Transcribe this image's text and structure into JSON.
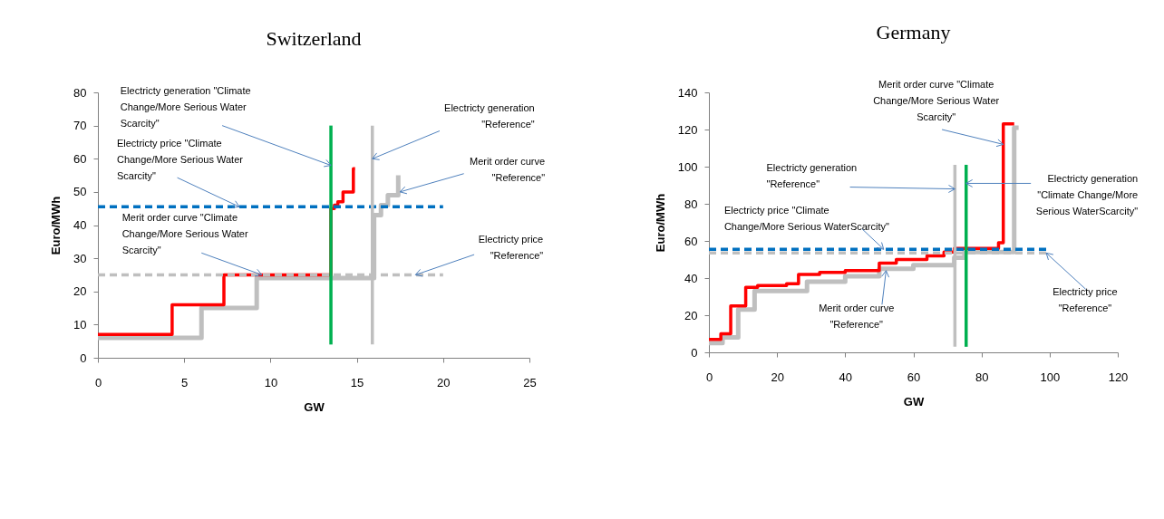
{
  "chart_data": [
    {
      "type": "step",
      "title": "Switzerland",
      "xlabel": "GW",
      "ylabel": "Euro/MWh",
      "xlim": [
        0,
        25
      ],
      "xticks": [
        0,
        5,
        10,
        15,
        20,
        25
      ],
      "ylim": [
        0,
        80
      ],
      "yticks": [
        0,
        10,
        20,
        30,
        40,
        50,
        60,
        70,
        80
      ],
      "grid": false,
      "marker": "none",
      "series": [
        {
          "color": "#bfbfbf",
          "x": [
            0,
            6,
            9.2,
            16,
            16.4,
            16.8,
            17.4
          ],
          "values": [
            6,
            15,
            24,
            43,
            46,
            49,
            55
          ]
        },
        {
          "color": "#ff0000",
          "x": [
            0,
            4.3,
            7.3,
            13.5,
            13.7,
            13.9,
            14.2,
            14.8,
            14.9
          ],
          "values": [
            7,
            16,
            25,
            45,
            46,
            47,
            50,
            57,
            57
          ]
        },
        {
          "type": "line",
          "line_style": "dashed",
          "color": "#0070c0",
          "x": [
            0,
            20
          ],
          "values": [
            45.5,
            45.5
          ]
        },
        {
          "type": "line",
          "line_style": "dashed",
          "color": "#bfbfbf",
          "x": [
            0,
            20
          ],
          "values": [
            25,
            25
          ]
        },
        {
          "type": "line",
          "color": "#00b050",
          "x": [
            13.5,
            13.5
          ],
          "values": [
            4,
            70
          ]
        },
        {
          "type": "line",
          "color": "#bfbfbf",
          "x": [
            15.9,
            15.9
          ],
          "values": [
            4,
            70
          ]
        }
      ],
      "annotations": [
        {
          "text": "Electricty generation \"Climate Change/More Serious Water Scarcity\"",
          "x": 13.5,
          "y": 58
        },
        {
          "text": "Electricty price \"Climate Change/More Serious Water Scarcity\"",
          "x": 8.2,
          "y": 45.5
        },
        {
          "text": "Merit order curve \"Climate Change/More Serious Water Scarcity\"",
          "x": 9.5,
          "y": 25
        },
        {
          "text": "Electricty generation \"Reference\"",
          "x": 15.9,
          "y": 60
        },
        {
          "text": "Merit order curve \"Reference\"",
          "x": 17.5,
          "y": 50
        },
        {
          "text": "Electricty price \"Reference\"",
          "x": 18.4,
          "y": 25
        }
      ]
    },
    {
      "type": "step",
      "title": "Germany",
      "xlabel": "GW",
      "ylabel": "Euro/MWh",
      "xlim": [
        0,
        120
      ],
      "xticks": [
        0,
        20,
        40,
        60,
        80,
        100,
        120
      ],
      "ylim": [
        0,
        140
      ],
      "yticks": [
        0,
        20,
        40,
        60,
        80,
        100,
        120,
        140
      ],
      "grid": false,
      "marker": "none",
      "series": [
        {
          "color": "#bfbfbf",
          "x": [
            0,
            4,
            8.6,
            13.4,
            28.8,
            40,
            50,
            60,
            72,
            75,
            89.6,
            90.9
          ],
          "values": [
            5,
            8,
            23,
            33,
            38,
            41,
            45,
            47,
            51,
            54,
            121,
            121
          ]
        },
        {
          "color": "#ff0000",
          "x": [
            0,
            3.5,
            6.4,
            10.8,
            14.3,
            22.8,
            26.3,
            32.5,
            40,
            50,
            55,
            64,
            69,
            72,
            85,
            86.4,
            89.6
          ],
          "values": [
            7,
            10,
            25,
            35,
            36,
            37,
            42,
            43,
            44,
            48,
            50,
            52,
            54,
            56,
            59,
            123,
            123
          ]
        },
        {
          "type": "line",
          "line_style": "dashed",
          "color": "#bfbfbf",
          "x": [
            0,
            99
          ],
          "values": [
            53.5,
            53.5
          ]
        },
        {
          "type": "line",
          "line_style": "dashed",
          "color": "#0070c0",
          "x": [
            0,
            99
          ],
          "values": [
            55.5,
            55.5
          ]
        },
        {
          "type": "line",
          "color": "#bfbfbf",
          "x": [
            72.2,
            72.2
          ],
          "values": [
            3,
            101
          ]
        },
        {
          "type": "line",
          "color": "#00b050",
          "x": [
            75.5,
            75.5
          ],
          "values": [
            3,
            101
          ]
        }
      ],
      "annotations": [
        {
          "text": "Merit order curve \"Climate Change/More Serious Water Scarcity\"",
          "x": 86.4,
          "y": 112
        },
        {
          "text": "Electricty generation \"Reference\"",
          "x": 72.2,
          "y": 88
        },
        {
          "text": "Electricty generation \"Climate Change/More Serious WaterScarcity\"",
          "x": 75.5,
          "y": 91
        },
        {
          "text": "Electricty price \"Climate Change/More Serious WaterScarcity\"",
          "x": 51.3,
          "y": 55.5
        },
        {
          "text": "Merit order curve \"Reference\"",
          "x": 52,
          "y": 44
        },
        {
          "text": "Electricty price \"Reference\"",
          "x": 99,
          "y": 53.5
        }
      ]
    }
  ]
}
